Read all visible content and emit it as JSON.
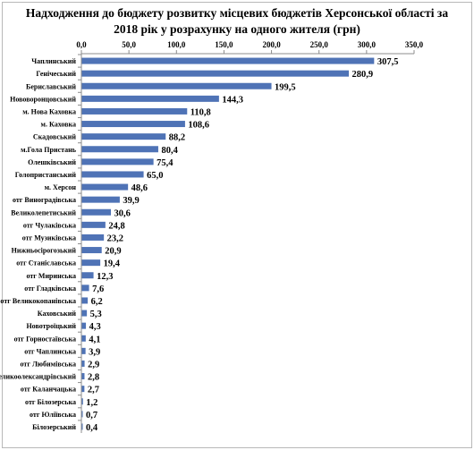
{
  "chart_data": {
    "type": "bar",
    "orientation": "horizontal",
    "title_lines": [
      "Надходження до бюджету розвитку місцевих бюджетів Херсонської області за",
      "2018 рік у розрахунку на одного жителя (грн)"
    ],
    "xlim": [
      0,
      350
    ],
    "x_ticks": [
      "0,0",
      "50,0",
      "100,0",
      "150,0",
      "200,0",
      "250,0",
      "300,0",
      "350,0"
    ],
    "x_axis_position": "top",
    "grid": false,
    "legend": "none",
    "bar_color": "#4f73b6",
    "categories": [
      "Чаплинський",
      "Генічеський",
      "Бериславський",
      "Нововоронцовський",
      "м. Нова Каховка",
      "м. Каховка",
      "Скадовський",
      "м.Гола Пристань",
      "Олешківський",
      "Голопристанський",
      "м. Херсон",
      "отг Виноградівська",
      "Великолепетиський",
      "отг Чулаківська",
      "отг Музиківська",
      "Нижньосірогозький",
      "отг Станіславська",
      "отг Миринська",
      "отг Гладківська",
      "отг Великокопанівська",
      "Каховський",
      "Новотроїцький",
      "отг Горностаївська",
      "отг Чаплинська",
      "отг Любимівська",
      "Великоолександрівський",
      "отг Каланчацька",
      "отг Білозерська",
      "отг Юліївська",
      "Білозерський"
    ],
    "values": [
      307.5,
      280.9,
      199.5,
      144.3,
      110.8,
      108.6,
      88.2,
      80.4,
      75.4,
      65.0,
      48.6,
      39.9,
      30.6,
      24.8,
      23.2,
      20.9,
      19.4,
      12.3,
      7.6,
      6.2,
      5.3,
      4.3,
      4.1,
      3.9,
      2.9,
      2.8,
      2.7,
      1.2,
      0.7,
      0.4
    ],
    "value_labels": [
      "307,5",
      "280,9",
      "199,5",
      "144,3",
      "110,8",
      "108,6",
      "88,2",
      "80,4",
      "75,4",
      "65,0",
      "48,6",
      "39,9",
      "30,6",
      "24,8",
      "23,2",
      "20,9",
      "19,4",
      "12,3",
      "7,6",
      "6,2",
      "5,3",
      "4,3",
      "4,1",
      "3,9",
      "2,9",
      "2,8",
      "2,7",
      "1,2",
      "0,7",
      "0,4"
    ]
  }
}
